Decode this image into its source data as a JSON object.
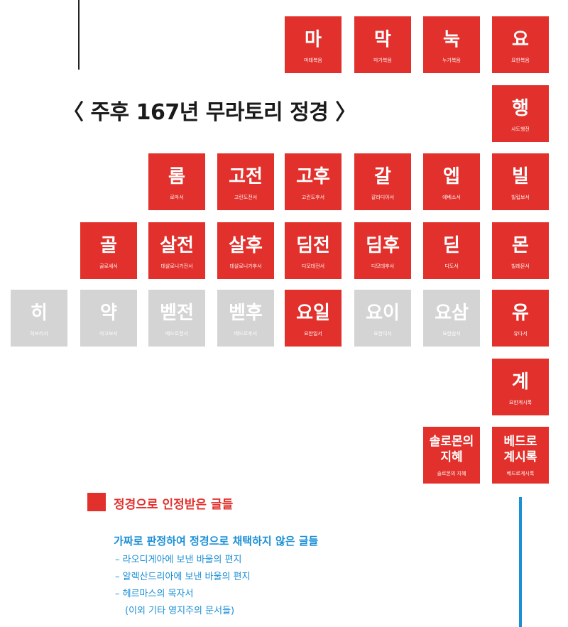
{
  "title": "〈 주후 167년 무라토리 정경 〉",
  "colors": {
    "canon_red": "#e2312c",
    "excluded_gray": "#d4d4d4",
    "forged_blue": "#1b8fd6"
  },
  "books": {
    "mat": {
      "abbr": "마",
      "name": "마태복음"
    },
    "mrk": {
      "abbr": "막",
      "name": "마가복음"
    },
    "luk": {
      "abbr": "눅",
      "name": "누가복음"
    },
    "jhn": {
      "abbr": "요",
      "name": "요한복음"
    },
    "act": {
      "abbr": "행",
      "name": "사도행전"
    },
    "rom": {
      "abbr": "롬",
      "name": "로마서"
    },
    "co1": {
      "abbr": "고전",
      "name": "고린도전서"
    },
    "co2": {
      "abbr": "고후",
      "name": "고린도후서"
    },
    "gal": {
      "abbr": "갈",
      "name": "갈라디아서"
    },
    "eph": {
      "abbr": "엡",
      "name": "에베소서"
    },
    "php": {
      "abbr": "빌",
      "name": "빌립보서"
    },
    "col": {
      "abbr": "골",
      "name": "골로새서"
    },
    "th1": {
      "abbr": "살전",
      "name": "데살로니가전서"
    },
    "th2": {
      "abbr": "살후",
      "name": "데살로니가후서"
    },
    "ti1": {
      "abbr": "딤전",
      "name": "디모데전서"
    },
    "ti2": {
      "abbr": "딤후",
      "name": "디모데후서"
    },
    "tit": {
      "abbr": "딛",
      "name": "디도서"
    },
    "phm": {
      "abbr": "몬",
      "name": "빌레몬서"
    },
    "heb": {
      "abbr": "히",
      "name": "히브리서"
    },
    "jas": {
      "abbr": "약",
      "name": "야고보서"
    },
    "pe1": {
      "abbr": "벧전",
      "name": "베드로전서"
    },
    "pe2": {
      "abbr": "벧후",
      "name": "베드로후서"
    },
    "jn1": {
      "abbr": "요일",
      "name": "요한일서"
    },
    "jn2": {
      "abbr": "요이",
      "name": "요한이서"
    },
    "jn3": {
      "abbr": "요삼",
      "name": "요한삼서"
    },
    "jud": {
      "abbr": "유",
      "name": "유다서"
    },
    "rev": {
      "abbr": "계",
      "name": "요한계시록"
    },
    "wis": {
      "abbr": "솔로몬의\n지혜",
      "name": "솔로몬의 지혜"
    },
    "apo": {
      "abbr": "베드로\n계시록",
      "name": "베드로계시록"
    }
  },
  "legend": {
    "canon_label": "정경으로 인정받은 글들",
    "forged_label": "가짜로 판정하여 정경으로 채택하지 않은 글들",
    "forged_items": [
      "– 라오디게아에 보낸 바울의 편지",
      "– 알렉산드리아에 보낸 바울의 편지",
      "– 헤르마스의 목자서",
      "(이외 기타 영지주의 문서들)"
    ]
  }
}
